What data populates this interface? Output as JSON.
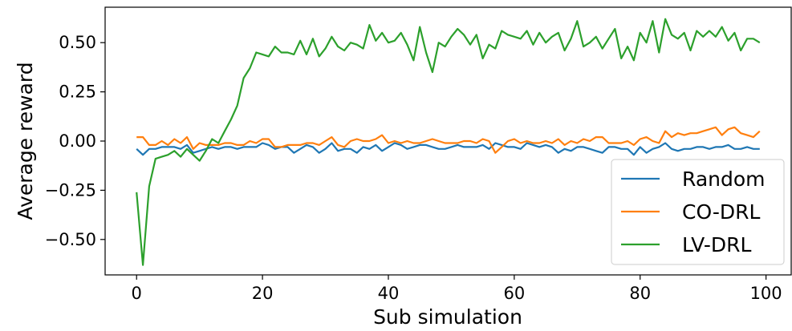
{
  "chart_data": {
    "type": "line",
    "title": "",
    "xlabel": "Sub simulation",
    "ylabel": "Average reward",
    "xlim": [
      -5,
      104
    ],
    "ylim": [
      -0.68,
      0.68
    ],
    "xticks": [
      0,
      20,
      40,
      60,
      80,
      100
    ],
    "xtick_labels": [
      "0",
      "20",
      "40",
      "60",
      "80",
      "100"
    ],
    "yticks": [
      -0.5,
      -0.25,
      0.0,
      0.25,
      0.5
    ],
    "ytick_labels": [
      "−0.50",
      "−0.25",
      "0.00",
      "0.25",
      "0.50"
    ],
    "grid": false,
    "legend_position": "lower-right",
    "x": [
      0,
      1,
      2,
      3,
      4,
      5,
      6,
      7,
      8,
      9,
      10,
      11,
      12,
      13,
      14,
      15,
      16,
      17,
      18,
      19,
      20,
      21,
      22,
      23,
      24,
      25,
      26,
      27,
      28,
      29,
      30,
      31,
      32,
      33,
      34,
      35,
      36,
      37,
      38,
      39,
      40,
      41,
      42,
      43,
      44,
      45,
      46,
      47,
      48,
      49,
      50,
      51,
      52,
      53,
      54,
      55,
      56,
      57,
      58,
      59,
      60,
      61,
      62,
      63,
      64,
      65,
      66,
      67,
      68,
      69,
      70,
      71,
      72,
      73,
      74,
      75,
      76,
      77,
      78,
      79,
      80,
      81,
      82,
      83,
      84,
      85,
      86,
      87,
      88,
      89,
      90,
      91,
      92,
      93,
      94,
      95,
      96,
      97,
      98,
      99
    ],
    "series": [
      {
        "name": "Random",
        "color": "#1f77b4",
        "values": [
          -0.04,
          -0.07,
          -0.04,
          -0.04,
          -0.03,
          -0.03,
          -0.03,
          -0.04,
          -0.02,
          -0.06,
          -0.05,
          -0.04,
          -0.03,
          -0.04,
          -0.03,
          -0.03,
          -0.04,
          -0.03,
          -0.03,
          -0.03,
          -0.01,
          -0.02,
          -0.04,
          -0.03,
          -0.03,
          -0.06,
          -0.04,
          -0.02,
          -0.03,
          -0.06,
          -0.04,
          -0.01,
          -0.05,
          -0.04,
          -0.04,
          -0.06,
          -0.03,
          -0.04,
          -0.02,
          -0.05,
          -0.03,
          -0.01,
          -0.02,
          -0.04,
          -0.03,
          -0.02,
          -0.02,
          -0.03,
          -0.04,
          -0.04,
          -0.03,
          -0.02,
          -0.03,
          -0.03,
          -0.03,
          -0.02,
          -0.04,
          -0.01,
          -0.02,
          -0.03,
          -0.03,
          -0.04,
          -0.01,
          -0.02,
          -0.03,
          -0.02,
          -0.03,
          -0.06,
          -0.04,
          -0.05,
          -0.03,
          -0.03,
          -0.04,
          -0.05,
          -0.06,
          -0.03,
          -0.03,
          -0.04,
          -0.04,
          -0.07,
          -0.03,
          -0.06,
          -0.04,
          -0.03,
          -0.01,
          -0.04,
          -0.05,
          -0.04,
          -0.04,
          -0.03,
          -0.03,
          -0.04,
          -0.03,
          -0.03,
          -0.02,
          -0.04,
          -0.04,
          -0.03,
          -0.04,
          -0.04
        ]
      },
      {
        "name": "CO-DRL",
        "color": "#ff7f0e",
        "values": [
          0.02,
          0.02,
          -0.02,
          -0.02,
          0.0,
          -0.02,
          0.01,
          -0.01,
          0.02,
          -0.04,
          -0.01,
          -0.02,
          -0.02,
          -0.02,
          -0.01,
          -0.01,
          -0.02,
          -0.02,
          0.0,
          -0.01,
          0.01,
          0.01,
          -0.03,
          -0.03,
          -0.02,
          -0.02,
          -0.02,
          -0.01,
          -0.01,
          -0.02,
          0.0,
          0.02,
          -0.02,
          -0.03,
          0.0,
          0.01,
          0.0,
          0.0,
          0.01,
          0.03,
          -0.01,
          0.0,
          -0.01,
          0.0,
          -0.01,
          -0.01,
          0.0,
          0.01,
          0.0,
          -0.01,
          -0.01,
          -0.01,
          0.0,
          0.0,
          -0.01,
          0.01,
          0.0,
          -0.06,
          -0.03,
          0.0,
          0.01,
          -0.01,
          0.0,
          -0.01,
          -0.01,
          0.0,
          -0.01,
          0.01,
          -0.02,
          0.0,
          -0.01,
          0.01,
          0.0,
          0.02,
          0.02,
          -0.01,
          -0.01,
          -0.01,
          0.0,
          -0.02,
          0.01,
          0.02,
          0.0,
          -0.01,
          0.05,
          0.02,
          0.04,
          0.03,
          0.04,
          0.04,
          0.05,
          0.06,
          0.07,
          0.03,
          0.06,
          0.07,
          0.04,
          0.03,
          0.02,
          0.05
        ]
      },
      {
        "name": "LV-DRL",
        "color": "#2ca02c",
        "values": [
          -0.26,
          -0.63,
          -0.23,
          -0.09,
          -0.08,
          -0.07,
          -0.05,
          -0.08,
          -0.04,
          -0.07,
          -0.1,
          -0.05,
          0.01,
          -0.01,
          0.05,
          0.11,
          0.18,
          0.32,
          0.37,
          0.45,
          0.44,
          0.43,
          0.48,
          0.45,
          0.45,
          0.44,
          0.51,
          0.44,
          0.52,
          0.43,
          0.47,
          0.53,
          0.48,
          0.46,
          0.5,
          0.49,
          0.47,
          0.59,
          0.51,
          0.55,
          0.5,
          0.51,
          0.55,
          0.49,
          0.41,
          0.58,
          0.45,
          0.35,
          0.5,
          0.48,
          0.53,
          0.57,
          0.54,
          0.49,
          0.54,
          0.42,
          0.49,
          0.47,
          0.56,
          0.54,
          0.53,
          0.52,
          0.56,
          0.49,
          0.55,
          0.5,
          0.53,
          0.55,
          0.46,
          0.52,
          0.61,
          0.48,
          0.5,
          0.53,
          0.47,
          0.52,
          0.57,
          0.42,
          0.48,
          0.41,
          0.55,
          0.5,
          0.61,
          0.45,
          0.62,
          0.54,
          0.52,
          0.55,
          0.46,
          0.56,
          0.53,
          0.56,
          0.53,
          0.58,
          0.51,
          0.55,
          0.46,
          0.52,
          0.52,
          0.5
        ]
      }
    ]
  }
}
